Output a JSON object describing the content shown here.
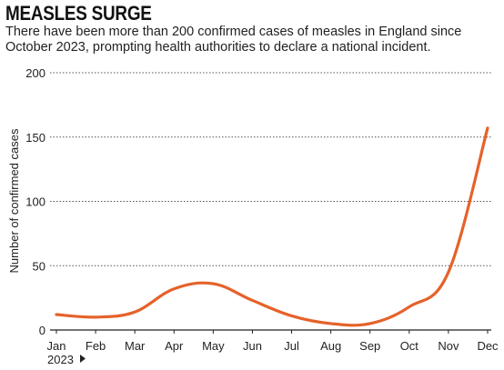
{
  "header": {
    "title": "MEASLES SURGE",
    "subtitle": "There have been more than 200 confirmed cases of measles in England since October 2023, prompting health authorities to declare a national incident."
  },
  "chart_data": {
    "type": "line",
    "title": "MEASLES SURGE",
    "ylabel": "Number of confirmed cases",
    "xlabel": "",
    "year_label": "2023",
    "categories": [
      "Jan",
      "Feb",
      "Mar",
      "Apr",
      "May",
      "Jun",
      "Jul",
      "Aug",
      "Sep",
      "Oct",
      "Nov",
      "Dec"
    ],
    "series": [
      {
        "values": [
          12,
          10,
          14,
          32,
          36,
          23,
          11,
          5,
          5,
          18,
          45,
          157
        ],
        "color": "#e5622a"
      }
    ],
    "ylim": [
      0,
      200
    ],
    "yticks": [
      0,
      50,
      100,
      150,
      200
    ],
    "grid": true
  },
  "colors": {
    "line": "#e5622a",
    "grid": "#555555",
    "text": "#222222"
  }
}
